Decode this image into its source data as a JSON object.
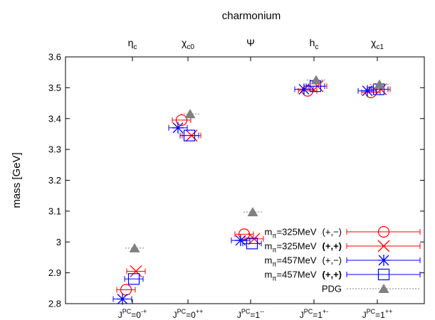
{
  "chart_data": {
    "type": "scatter",
    "title": "charmonium",
    "ylabel": "mass [GeV]",
    "ylim": [
      2.8,
      3.6
    ],
    "yticks": [
      "2.8",
      "2.9",
      "3",
      "3.1",
      "3.2",
      "3.3",
      "3.4",
      "3.5",
      "3.6"
    ],
    "categories": [
      {
        "base": "J",
        "sup": "PC",
        "rest": "=0",
        "rest_sup": "-+"
      },
      {
        "base": "J",
        "sup": "PC",
        "rest": "=0",
        "rest_sup": "++"
      },
      {
        "base": "J",
        "sup": "PC",
        "rest": "=1",
        "rest_sup": "--"
      },
      {
        "base": "J",
        "sup": "PC",
        "rest": "=1",
        "rest_sup": "+-"
      },
      {
        "base": "J",
        "sup": "PC",
        "rest": "=1",
        "rest_sup": "++"
      }
    ],
    "top_labels": [
      {
        "base": "η",
        "sub": "c"
      },
      {
        "base": "χ",
        "sub": "c0"
      },
      {
        "base": "Ψ",
        "sub": ""
      },
      {
        "base": "h",
        "sub": "c"
      },
      {
        "base": "χ",
        "sub": "c1"
      }
    ],
    "series": [
      {
        "name": "m_π=325MeV (+,−)",
        "label_base": "m",
        "label_sub": "π",
        "label_rest": "=325MeV",
        "label_tag": "(+,−)",
        "tag_bold": false,
        "color": "#ff0000",
        "marker": "circle",
        "values": [
          2.845,
          3.395,
          3.025,
          3.49,
          3.485
        ]
      },
      {
        "name": "m_π=325MeV (+,+)",
        "label_base": "m",
        "label_sub": "π",
        "label_rest": "=325MeV",
        "label_tag": "(+,+)",
        "tag_bold": true,
        "color": "#ff0000",
        "marker": "cross",
        "values": [
          2.905,
          3.345,
          3.01,
          3.505,
          3.495
        ]
      },
      {
        "name": "m_π=457MeV (+,−)",
        "label_base": "m",
        "label_sub": "π",
        "label_rest": "=457MeV",
        "label_tag": "(+,−)",
        "tag_bold": false,
        "color": "#0000ff",
        "marker": "star",
        "values": [
          2.815,
          3.37,
          3.005,
          3.495,
          3.49
        ]
      },
      {
        "name": "m_π=457MeV (+,+)",
        "label_base": "m",
        "label_sub": "π",
        "label_rest": "=457MeV",
        "label_tag": "(+,+)",
        "tag_bold": true,
        "color": "#0000ff",
        "marker": "square",
        "values": [
          2.88,
          3.345,
          2.995,
          3.505,
          3.495
        ]
      },
      {
        "name": "PDG",
        "label_base": "PDG",
        "label_sub": "",
        "label_rest": "",
        "label_tag": "",
        "tag_bold": false,
        "color": "#808080",
        "marker": "triangle",
        "values": [
          2.98,
          3.415,
          3.097,
          3.525,
          3.511
        ]
      }
    ],
    "legend_position": "bottom-right",
    "grid": false
  }
}
